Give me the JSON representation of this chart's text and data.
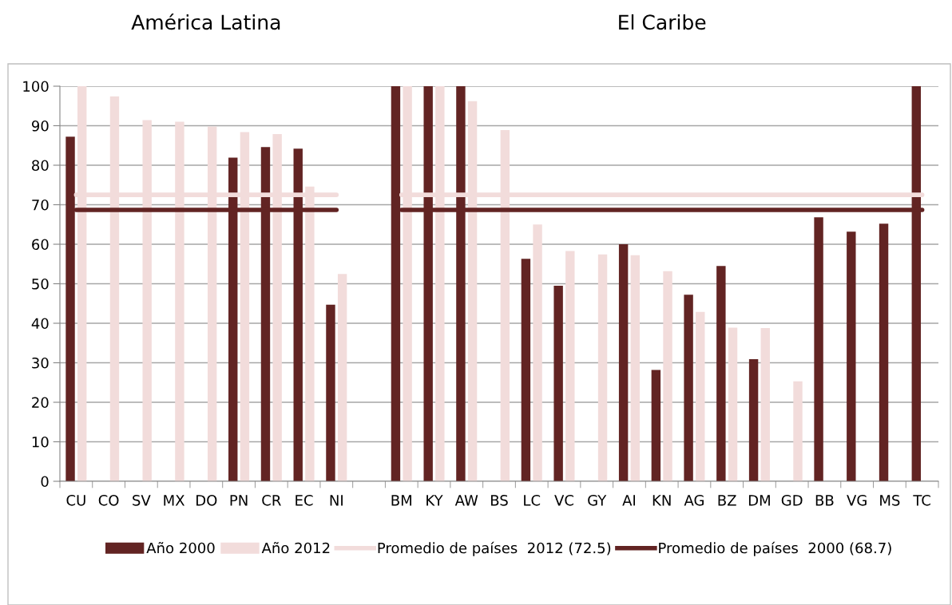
{
  "chart_data": {
    "type": "bar",
    "annotations": [
      "América Latina",
      "El Caribe"
    ],
    "categories": [
      "CU",
      "CO",
      "SV",
      "MX",
      "DO",
      "PN",
      "CR",
      "EC",
      "NI",
      null,
      "BM",
      "KY",
      "AW",
      "BS",
      "LC",
      "VC",
      "GY",
      "AI",
      "KN",
      "AG",
      "BZ",
      "DM",
      "GD",
      "BB",
      "VG",
      "MS",
      "TC"
    ],
    "series": [
      {
        "name": "Año 2000",
        "color": "#622423",
        "values": [
          87.2,
          null,
          null,
          null,
          null,
          81.9,
          84.6,
          84.2,
          44.7,
          null,
          100,
          100,
          100,
          null,
          56.3,
          49.5,
          null,
          60,
          28.2,
          47.2,
          54.5,
          30.9,
          null,
          66.8,
          63.2,
          65.2,
          100
        ]
      },
      {
        "name": "Año 2012",
        "color": "#f2dcdb",
        "values": [
          100,
          97.4,
          91.4,
          91,
          89.8,
          88.4,
          87.9,
          74.6,
          52.5,
          null,
          100,
          100,
          96.2,
          88.9,
          65.0,
          58.3,
          57.4,
          57.2,
          53.2,
          42.9,
          38.9,
          38.8,
          25.3,
          null,
          null,
          null,
          null
        ]
      },
      {
        "name": "Promedio de países  2012 (72.5)",
        "type": "line",
        "color": "#f2dcdb",
        "values": [
          72.5,
          72.5,
          72.5,
          72.5,
          72.5,
          72.5,
          72.5,
          72.5,
          72.5,
          null,
          72.5,
          72.5,
          72.5,
          72.5,
          72.5,
          72.5,
          72.5,
          72.5,
          72.5,
          72.5,
          72.5,
          72.5,
          72.5,
          72.5,
          72.5,
          72.5,
          72.5
        ]
      },
      {
        "name": "Promedio de países  2000 (68.7)",
        "type": "line",
        "color": "#622423",
        "values": [
          68.7,
          68.7,
          68.7,
          68.7,
          68.7,
          68.7,
          68.7,
          68.7,
          68.7,
          null,
          68.7,
          68.7,
          68.7,
          68.7,
          68.7,
          68.7,
          68.7,
          68.7,
          68.7,
          68.7,
          68.7,
          68.7,
          68.7,
          68.7,
          68.7,
          68.7,
          68.7
        ]
      }
    ],
    "ylim": [
      0,
      100
    ],
    "yticks": [
      0,
      10,
      20,
      30,
      40,
      50,
      60,
      70,
      80,
      90,
      100
    ],
    "grid": "y",
    "legend": "bottom"
  }
}
